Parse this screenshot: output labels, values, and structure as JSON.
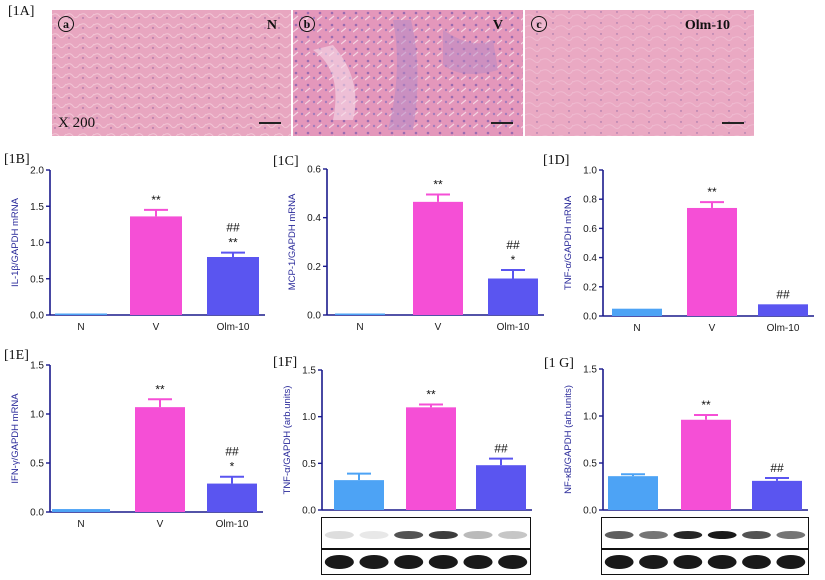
{
  "figure": {
    "panel_1A": {
      "label": "[1A]",
      "magnification": "X 200",
      "images": [
        {
          "badge": "a",
          "group": "N"
        },
        {
          "badge": "b",
          "group": "V"
        },
        {
          "badge": "c",
          "group": "Olm-10"
        }
      ]
    },
    "groups": [
      "N",
      "V",
      "Olm-10"
    ],
    "colors": {
      "N": "#4da3f5",
      "V": "#f54fd6",
      "Olm-10": "#5a55f0",
      "axis": "#1a1a8c"
    }
  },
  "chart_data": [
    {
      "id": "1B",
      "label": "[1B]",
      "type": "bar",
      "title": "",
      "xlabel": "",
      "ylabel": "IL-1β/GAPDH mRNA",
      "categories": [
        "N",
        "V",
        "Olm-10"
      ],
      "values": [
        0.01,
        1.36,
        0.8
      ],
      "errors": [
        0.0,
        0.09,
        0.06
      ],
      "annotations": [
        "",
        "**",
        "##\n**"
      ],
      "ylim": [
        0,
        2.0
      ],
      "yticks": [
        "0.0",
        "0.5",
        "1.0",
        "1.5",
        "2.0"
      ],
      "grid": false
    },
    {
      "id": "1C",
      "label": "[1C]",
      "type": "bar",
      "title": "",
      "xlabel": "",
      "ylabel": "MCP-1/GAPDH mRNA",
      "categories": [
        "N",
        "V",
        "Olm-10"
      ],
      "values": [
        0.0,
        0.465,
        0.15
      ],
      "errors": [
        0.0,
        0.03,
        0.035
      ],
      "annotations": [
        "",
        "**",
        "##\n*"
      ],
      "ylim": [
        0,
        0.6
      ],
      "yticks": [
        "0.0",
        "0.2",
        "0.4",
        "0.6"
      ],
      "grid": false
    },
    {
      "id": "1D",
      "label": "[1D]",
      "type": "bar",
      "title": "",
      "xlabel": "",
      "ylabel": "TNF-α/GAPDH mRNA",
      "categories": [
        "N",
        "V",
        "Olm-10"
      ],
      "values": [
        0.05,
        0.74,
        0.08
      ],
      "errors": [
        0.0,
        0.04,
        0.0
      ],
      "annotations": [
        "",
        "**",
        "##"
      ],
      "ylim": [
        0,
        1.0
      ],
      "yticks": [
        "0.0",
        "0.2",
        "0.4",
        "0.6",
        "0.8",
        "1.0"
      ],
      "grid": false
    },
    {
      "id": "1E",
      "label": "[1E]",
      "type": "bar",
      "title": "",
      "xlabel": "",
      "ylabel": "IFN-γ/GAPDH mRNA",
      "categories": [
        "N",
        "V",
        "Olm-10"
      ],
      "values": [
        0.03,
        1.07,
        0.29
      ],
      "errors": [
        0.0,
        0.08,
        0.07
      ],
      "annotations": [
        "",
        "**",
        "##\n*"
      ],
      "ylim": [
        0,
        1.5
      ],
      "yticks": [
        "0.0",
        "0.5",
        "1.0",
        "1.5"
      ],
      "grid": false
    },
    {
      "id": "1F",
      "label": "[1F]",
      "type": "bar",
      "title": "",
      "xlabel": "",
      "ylabel": "TNF-α/GAPDH (arb.units)",
      "categories": [
        "N",
        "V",
        "Olm-10"
      ],
      "values": [
        0.32,
        1.1,
        0.48
      ],
      "errors": [
        0.07,
        0.03,
        0.07
      ],
      "annotations": [
        "",
        "**",
        "##"
      ],
      "ylim": [
        0,
        1.5
      ],
      "yticks": [
        "0.0",
        "0.5",
        "1.0",
        "1.5"
      ],
      "grid": false,
      "western_blot": {
        "lanes": 6,
        "target_band_intensity": [
          0.15,
          0.1,
          0.75,
          0.85,
          0.3,
          0.25
        ],
        "loading_band_intensity": [
          1,
          1,
          1,
          1,
          1,
          1
        ]
      }
    },
    {
      "id": "1G",
      "label": "[1 G]",
      "type": "bar",
      "title": "",
      "xlabel": "",
      "ylabel": "NF-κB/GAPDH (arb.units)",
      "categories": [
        "N",
        "V",
        "Olm-10"
      ],
      "values": [
        0.36,
        0.96,
        0.31
      ],
      "errors": [
        0.02,
        0.05,
        0.03
      ],
      "annotations": [
        "",
        "**",
        "##"
      ],
      "ylim": [
        0,
        1.5
      ],
      "yticks": [
        "0.0",
        "0.5",
        "1.0",
        "1.5"
      ],
      "grid": false,
      "western_blot": {
        "lanes": 6,
        "target_band_intensity": [
          0.7,
          0.6,
          0.95,
          1.0,
          0.75,
          0.6
        ],
        "loading_band_intensity": [
          1,
          1,
          1,
          1,
          1,
          1
        ]
      }
    }
  ]
}
